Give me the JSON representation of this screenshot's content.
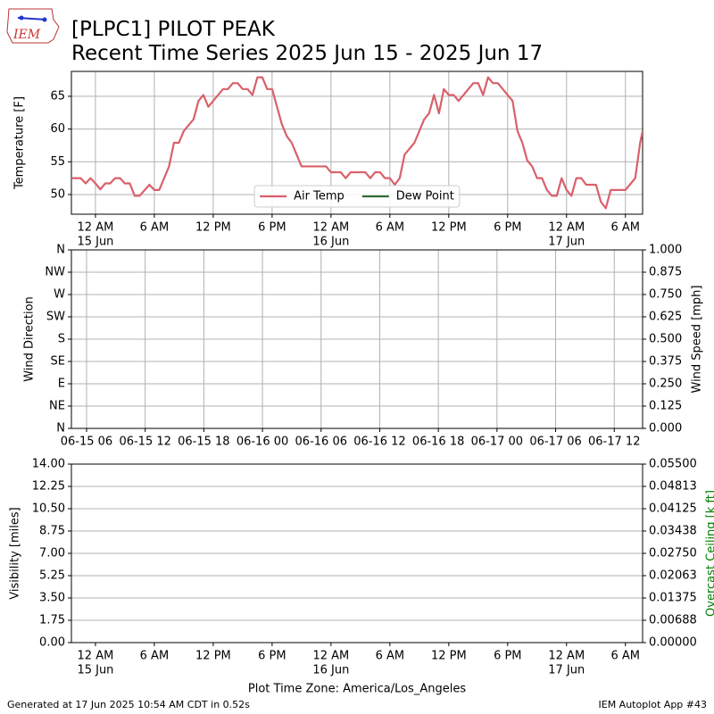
{
  "title": "[PLPC1] PILOT PEAK",
  "subtitle": "Recent Time Series 2025 Jun 15 - 2025 Jun 17",
  "logo_text": "IEM",
  "footer_left": "Generated at 17 Jun 2025 10:54 AM CDT in 0.52s",
  "footer_right": "IEM Autoplot App #43",
  "chart_data": [
    {
      "type": "line",
      "ylabel": "Temperature [F]",
      "xlim": [
        -2.45,
        55.75
      ],
      "ylim": [
        47,
        68.8
      ],
      "xticks": [
        {
          "value": 0,
          "label": "12 AM",
          "date": "15 Jun"
        },
        {
          "value": 6,
          "label": "6 AM"
        },
        {
          "value": 12,
          "label": "12 PM"
        },
        {
          "value": 18,
          "label": "6 PM"
        },
        {
          "value": 24,
          "label": "12 AM",
          "date": "16 Jun"
        },
        {
          "value": 30,
          "label": "6 AM"
        },
        {
          "value": 36,
          "label": "12 PM"
        },
        {
          "value": 42,
          "label": "6 PM"
        },
        {
          "value": 48,
          "label": "12 AM",
          "date": "17 Jun"
        },
        {
          "value": 54,
          "label": "6 AM"
        }
      ],
      "yticks": [
        50,
        55,
        60,
        65
      ],
      "grid": "both",
      "legend": "lower center",
      "series": [
        {
          "name": "Air Temp",
          "color": "#d9606a",
          "x": [
            -2.45,
            -1.5,
            -1,
            -0.5,
            0,
            0.5,
            1,
            1.5,
            2,
            2.5,
            3,
            3.5,
            4,
            4.5,
            5.5,
            6,
            6.5,
            7.5,
            8,
            8.5,
            9,
            10,
            10.5,
            11,
            11.5,
            12,
            13,
            13.5,
            14,
            14.5,
            15,
            15.5,
            16,
            16.5,
            17,
            17.5,
            18,
            18.5,
            19,
            19.5,
            20,
            21,
            22,
            23,
            23.5,
            24,
            25,
            25.5,
            26,
            27.5,
            28,
            28.5,
            29,
            29.5,
            30,
            30.5,
            31,
            31.5,
            32.5,
            33.5,
            34,
            34.5,
            35,
            35.5,
            36,
            36.5,
            37,
            38,
            38.5,
            39,
            39.5,
            40,
            40.5,
            41,
            42,
            42.5,
            43,
            43.5,
            44,
            44.5,
            45,
            45.5,
            46,
            46.5,
            47,
            47.5,
            48,
            48.5,
            49,
            49.5,
            50,
            51,
            51.5,
            52,
            52.5,
            54,
            55,
            55.5,
            55.75
          ],
          "values": [
            52.5,
            52.5,
            51.7,
            52.5,
            51.7,
            50.8,
            51.7,
            51.7,
            52.5,
            52.5,
            51.7,
            51.7,
            49.8,
            49.8,
            51.5,
            50.7,
            50.7,
            54.3,
            57.9,
            57.9,
            59.7,
            61.5,
            64.3,
            65.2,
            63.4,
            64.3,
            66.1,
            66.1,
            67.0,
            67.0,
            66.1,
            66.1,
            65.2,
            67.9,
            67.9,
            66.1,
            66.1,
            63.4,
            60.7,
            58.9,
            57.9,
            54.3,
            54.3,
            54.3,
            54.3,
            53.4,
            53.4,
            52.5,
            53.4,
            53.4,
            52.5,
            53.4,
            53.4,
            52.5,
            52.5,
            51.5,
            52.5,
            56.1,
            57.9,
            61.5,
            62.4,
            65.2,
            62.4,
            66.1,
            65.2,
            65.2,
            64.3,
            66.1,
            67.0,
            67.0,
            65.2,
            67.9,
            67.0,
            67.0,
            65.2,
            64.3,
            59.7,
            57.9,
            55.2,
            54.3,
            52.5,
            52.5,
            50.7,
            49.8,
            49.8,
            52.5,
            50.7,
            49.8,
            52.5,
            52.5,
            51.5,
            51.5,
            48.9,
            47.9,
            50.7,
            50.7,
            52.5,
            57.9,
            59.7
          ]
        },
        {
          "name": "Dew Point",
          "color": "#2e6b30",
          "x": [],
          "values": []
        }
      ]
    },
    {
      "type": "line",
      "ylabel": "Wind Direction",
      "y2label": "Wind Speed [mph]",
      "xlim": [
        4.45,
        62.9
      ],
      "ylim": [
        0,
        360
      ],
      "y2lim": [
        0,
        1
      ],
      "xticks": [
        {
          "value": 6,
          "label": "06-15 06"
        },
        {
          "value": 12,
          "label": "06-15 12"
        },
        {
          "value": 18,
          "label": "06-15 18"
        },
        {
          "value": 24,
          "label": "06-16 00"
        },
        {
          "value": 30,
          "label": "06-16 06"
        },
        {
          "value": 36,
          "label": "06-16 12"
        },
        {
          "value": 42,
          "label": "06-16 18"
        },
        {
          "value": 48,
          "label": "06-17 00"
        },
        {
          "value": 54,
          "label": "06-17 06"
        },
        {
          "value": 60,
          "label": "06-17 12"
        }
      ],
      "yticks": [
        {
          "value": 0,
          "label": "N"
        },
        {
          "value": 45,
          "label": "NE"
        },
        {
          "value": 90,
          "label": "E"
        },
        {
          "value": 135,
          "label": "SE"
        },
        {
          "value": 180,
          "label": "S"
        },
        {
          "value": 225,
          "label": "SW"
        },
        {
          "value": 270,
          "label": "W"
        },
        {
          "value": 315,
          "label": "NW"
        },
        {
          "value": 360,
          "label": "N"
        }
      ],
      "y2ticks": [
        {
          "value": 0,
          "label": "0.000"
        },
        0.125,
        {
          "value": 0.25,
          "label": "0.250"
        },
        0.375,
        {
          "value": 0.5,
          "label": "0.500"
        },
        0.625,
        {
          "value": 0.75,
          "label": "0.750"
        },
        0.875,
        {
          "value": 1,
          "label": "1.000"
        }
      ],
      "grid": "both",
      "series": []
    },
    {
      "type": "line",
      "ylabel": "Visibility [miles]",
      "y2label": "Overcast Ceiling [k ft]",
      "y2label_color": "#008000",
      "xlabel": "Plot Time Zone: America/Los_Angeles",
      "xlim": [
        -2.45,
        55.75
      ],
      "ylim": [
        0,
        14
      ],
      "y2lim": [
        0,
        0.055
      ],
      "xticks": [
        {
          "value": 0,
          "label": "12 AM",
          "date": "15 Jun"
        },
        {
          "value": 6,
          "label": "6 AM"
        },
        {
          "value": 12,
          "label": "12 PM"
        },
        {
          "value": 18,
          "label": "6 PM"
        },
        {
          "value": 24,
          "label": "12 AM",
          "date": "16 Jun"
        },
        {
          "value": 30,
          "label": "6 AM"
        },
        {
          "value": 36,
          "label": "12 PM"
        },
        {
          "value": 42,
          "label": "6 PM"
        },
        {
          "value": 48,
          "label": "12 AM",
          "date": "17 Jun"
        },
        {
          "value": 54,
          "label": "6 AM"
        }
      ],
      "yticks": [
        {
          "value": 0,
          "label": "0.00"
        },
        1.75,
        {
          "value": 3.5,
          "label": "3.50"
        },
        5.25,
        {
          "value": 7,
          "label": "7.00"
        },
        8.75,
        {
          "value": 10.5,
          "label": "10.50"
        },
        12.25,
        {
          "value": 14,
          "label": "14.00"
        }
      ],
      "y2ticks": [
        {
          "value": 0,
          "label": "0.00000"
        },
        0.00688,
        0.01375,
        0.02063,
        {
          "value": 0.0275,
          "label": "0.02750"
        },
        0.03438,
        {
          "value": 0.04125,
          "label": "0.04125"
        },
        0.04813,
        {
          "value": 0.055,
          "label": "0.05500"
        }
      ],
      "grid": "y",
      "series": []
    }
  ]
}
